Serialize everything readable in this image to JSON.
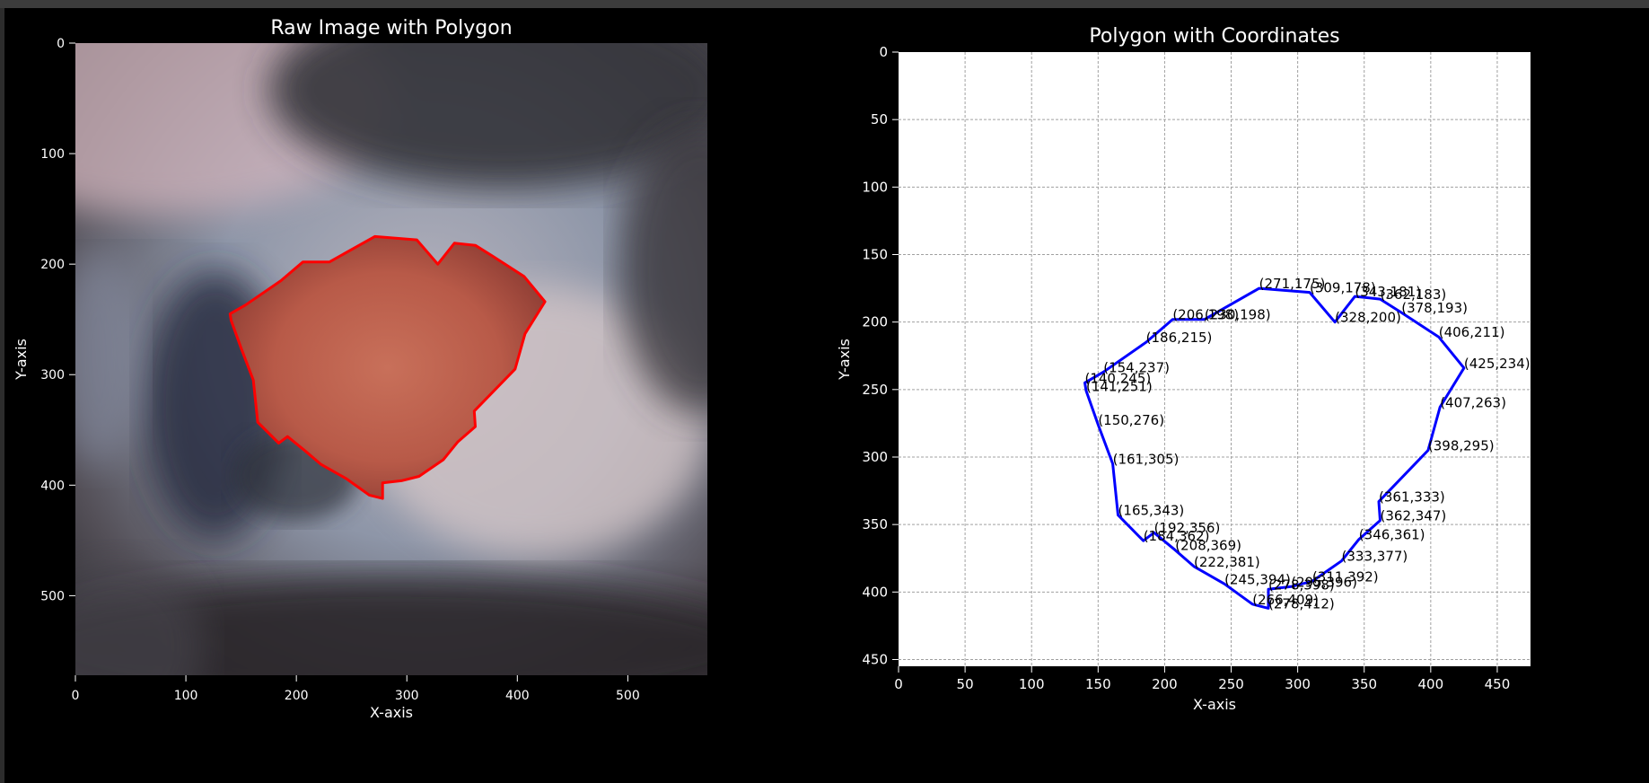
{
  "chart_data": [
    {
      "type": "image_with_polygon",
      "title": "Raw Image with Polygon",
      "xlabel": "X-axis",
      "ylabel": "Y-axis",
      "xlim": [
        0,
        572
      ],
      "ylim": [
        572,
        0
      ],
      "xticks": [
        "0",
        "100",
        "200",
        "300",
        "400",
        "500"
      ],
      "yticks": [
        "0",
        "100",
        "200",
        "300",
        "400",
        "500"
      ],
      "polygon_color": "#ff0000",
      "axis_text_color": "#ffffff"
    },
    {
      "type": "line",
      "title": "Polygon with Coordinates",
      "xlabel": "X-axis",
      "ylabel": "Y-axis",
      "xlim": [
        0,
        475
      ],
      "ylim": [
        455,
        0
      ],
      "xticks": [
        "0",
        "50",
        "100",
        "150",
        "200",
        "250",
        "300",
        "350",
        "400",
        "450"
      ],
      "yticks": [
        "0",
        "50",
        "100",
        "150",
        "200",
        "250",
        "300",
        "350",
        "400",
        "450"
      ],
      "grid": true,
      "line_color": "#0000ff",
      "points": [
        {
          "x": 271,
          "y": 175,
          "label": "(271,175)"
        },
        {
          "x": 309,
          "y": 178,
          "label": "(309,178)"
        },
        {
          "x": 328,
          "y": 200,
          "label": "(328,200)"
        },
        {
          "x": 343,
          "y": 181,
          "label": "(343,181)"
        },
        {
          "x": 362,
          "y": 183,
          "label": "(362,183)"
        },
        {
          "x": 378,
          "y": 193,
          "label": "(378,193)"
        },
        {
          "x": 406,
          "y": 211,
          "label": "(406,211)"
        },
        {
          "x": 425,
          "y": 234,
          "label": "(425,234)"
        },
        {
          "x": 407,
          "y": 263,
          "label": "(407,263)"
        },
        {
          "x": 398,
          "y": 295,
          "label": "(398,295)"
        },
        {
          "x": 361,
          "y": 333,
          "label": "(361,333)"
        },
        {
          "x": 362,
          "y": 347,
          "label": "(362,347)"
        },
        {
          "x": 346,
          "y": 361,
          "label": "(346,361)"
        },
        {
          "x": 333,
          "y": 377,
          "label": "(333,377)"
        },
        {
          "x": 311,
          "y": 392,
          "label": "(311,392)"
        },
        {
          "x": 295,
          "y": 396,
          "label": "(295,396)"
        },
        {
          "x": 278,
          "y": 398,
          "label": "(278,398)"
        },
        {
          "x": 278,
          "y": 412,
          "label": "(278,412)"
        },
        {
          "x": 266,
          "y": 409,
          "label": "(266,409)"
        },
        {
          "x": 245,
          "y": 394,
          "label": "(245,394)"
        },
        {
          "x": 222,
          "y": 381,
          "label": "(222,381)"
        },
        {
          "x": 208,
          "y": 369,
          "label": "(208,369)"
        },
        {
          "x": 192,
          "y": 356,
          "label": "(192,356)"
        },
        {
          "x": 184,
          "y": 362,
          "label": "(184,362)"
        },
        {
          "x": 165,
          "y": 343,
          "label": "(165,343)"
        },
        {
          "x": 161,
          "y": 305,
          "label": "(161,305)"
        },
        {
          "x": 150,
          "y": 276,
          "label": "(150,276)"
        },
        {
          "x": 141,
          "y": 251,
          "label": "(141,251)"
        },
        {
          "x": 140,
          "y": 245,
          "label": "(140,245)"
        },
        {
          "x": 154,
          "y": 237,
          "label": "(154,237)"
        },
        {
          "x": 186,
          "y": 215,
          "label": "(186,215)"
        },
        {
          "x": 206,
          "y": 198,
          "label": "(206,198)"
        },
        {
          "x": 230,
          "y": 198,
          "label": "(230,198)"
        }
      ]
    }
  ]
}
